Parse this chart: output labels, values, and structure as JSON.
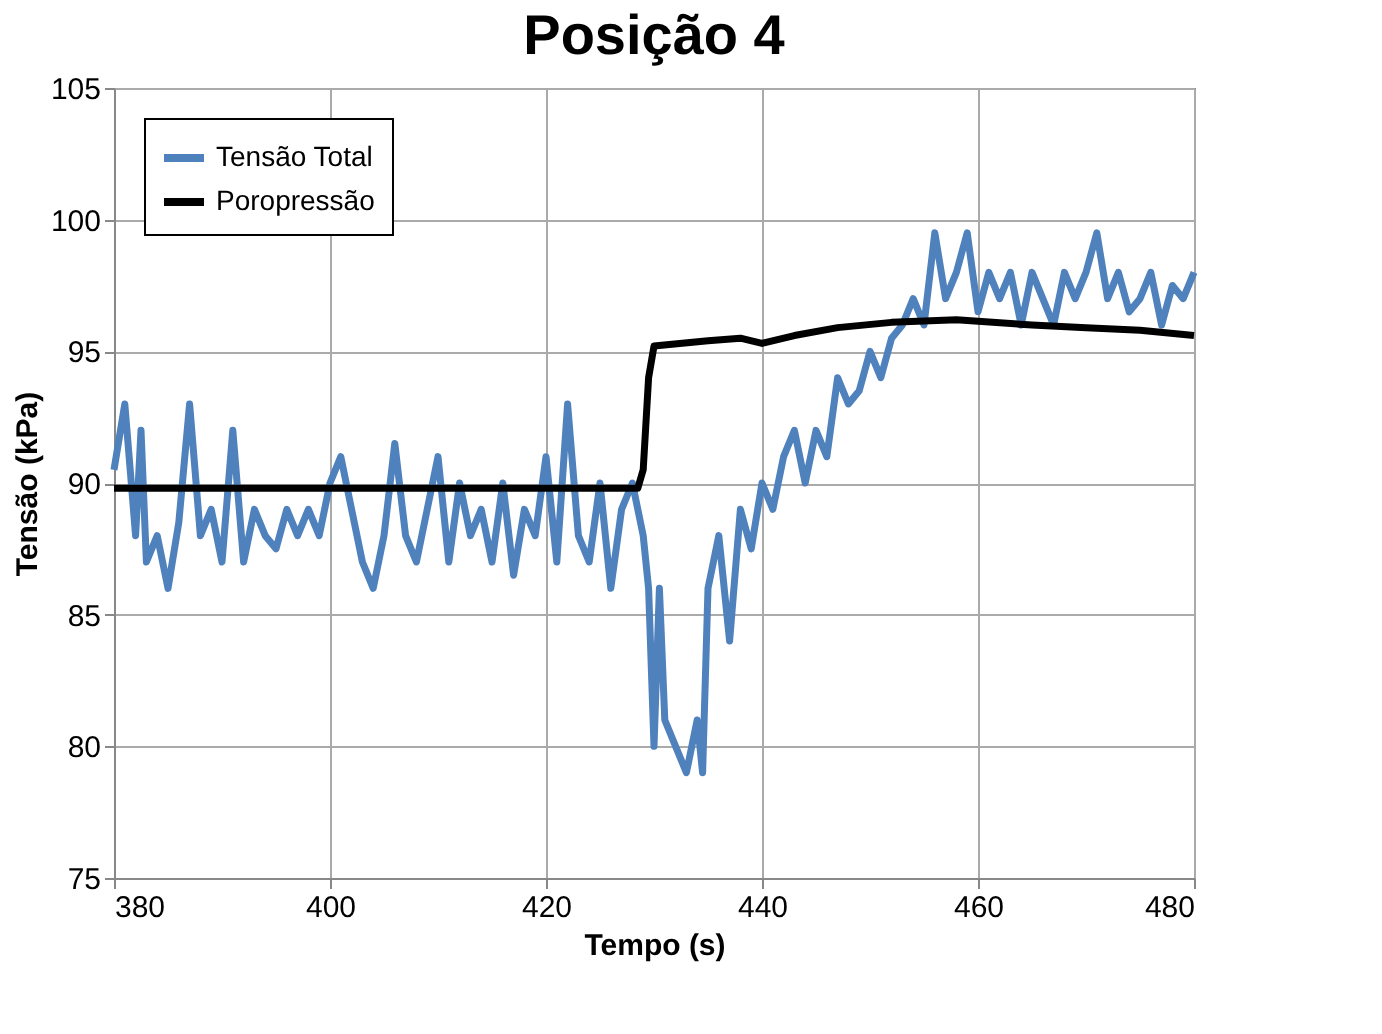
{
  "chart_data": {
    "type": "line",
    "title": "Posição 4",
    "xlabel": "Tempo (s)",
    "ylabel": "Tensão (kPa)",
    "xlim": [
      380,
      480
    ],
    "xticks": [
      380,
      400,
      420,
      440,
      460,
      480
    ],
    "ylim": [
      75,
      105
    ],
    "yticks": [
      75,
      80,
      85,
      90,
      95,
      100,
      105
    ],
    "grid": true,
    "legend": "top left",
    "line_style": "solid",
    "marker": "none",
    "series": [
      {
        "name": "Tensão Total",
        "color": "#4f81bd",
        "x": [
          380,
          381,
          382,
          382.5,
          383,
          384,
          385,
          386,
          387,
          388,
          389,
          390,
          391,
          392,
          393,
          394,
          395,
          396,
          397,
          398,
          399,
          400,
          401,
          402,
          403,
          404,
          405,
          406,
          407,
          408,
          409,
          410,
          411,
          412,
          413,
          414,
          415,
          416,
          417,
          418,
          419,
          420,
          421,
          422,
          423,
          424,
          425,
          426,
          427,
          428,
          429,
          429.5,
          430,
          430.5,
          431,
          432,
          433,
          434,
          434.5,
          435,
          436,
          437,
          438,
          439,
          440,
          441,
          442,
          443,
          444,
          445,
          446,
          447,
          448,
          449,
          450,
          451,
          452,
          453,
          454,
          455,
          456,
          457,
          458,
          459,
          460,
          461,
          462,
          463,
          464,
          465,
          466,
          467,
          468,
          469,
          470,
          471,
          472,
          473,
          474,
          475,
          476,
          477,
          478,
          479,
          480
        ],
        "values": [
          90.5,
          93,
          88,
          92,
          87,
          88,
          86,
          88.5,
          93,
          88,
          89,
          87,
          92,
          87,
          89,
          88,
          87.5,
          89,
          88,
          89,
          88,
          90,
          91,
          89,
          87,
          86,
          88,
          91.5,
          88,
          87,
          89,
          91,
          87,
          90,
          88,
          89,
          87,
          90,
          86.5,
          89,
          88,
          91,
          87,
          93,
          88,
          87,
          90,
          86,
          89,
          90,
          88,
          86,
          80,
          86,
          81,
          80,
          79,
          81,
          79,
          86,
          88,
          84,
          89,
          87.5,
          90,
          89,
          91,
          92,
          90,
          92,
          91,
          94,
          93,
          93.5,
          95,
          94,
          95.5,
          96,
          97,
          96,
          99.5,
          97,
          98,
          99.5,
          96.5,
          98,
          97,
          98,
          96,
          98,
          97,
          96,
          98,
          97,
          98,
          99.5,
          97,
          98,
          96.5,
          97,
          98,
          96,
          97.5,
          97,
          98
        ]
      },
      {
        "name": "Poropressão",
        "color": "#000000",
        "x": [
          380,
          428.5,
          429,
          429.5,
          430,
          435,
          438,
          440,
          443,
          447,
          452,
          458,
          465,
          470,
          475,
          480
        ],
        "values": [
          89.8,
          89.8,
          90.5,
          94,
          95.2,
          95.4,
          95.5,
          95.3,
          95.6,
          95.9,
          96.1,
          96.2,
          96.0,
          95.9,
          95.8,
          95.6
        ]
      }
    ]
  }
}
